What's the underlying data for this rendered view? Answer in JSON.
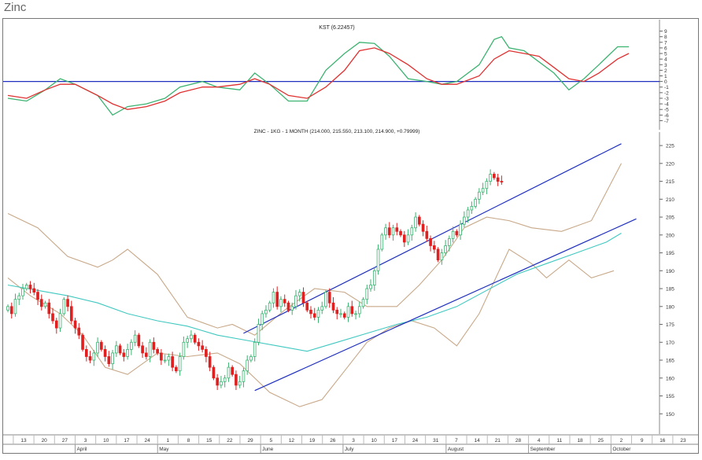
{
  "page": {
    "title": "Zinc"
  },
  "chart_data": [
    {
      "type": "line",
      "title": "KST (6.22457)",
      "ylim": [
        -7.5,
        9.5
      ],
      "y_ticks": [
        9,
        8,
        7,
        6,
        5,
        4,
        3,
        2,
        1,
        0,
        -1,
        -2,
        -3,
        -4,
        -5,
        -6,
        -7
      ],
      "zero_line": 0,
      "grid": false,
      "series": [
        {
          "color": "#3cb371",
          "points": [
            [
              0,
              -3.0
            ],
            [
              5,
              -3.5
            ],
            [
              10,
              -1.5
            ],
            [
              14,
              0.5
            ],
            [
              18,
              -0.5
            ],
            [
              24,
              -2.5
            ],
            [
              28,
              -6.0
            ],
            [
              32,
              -4.5
            ],
            [
              37,
              -4.0
            ],
            [
              42,
              -3.0
            ],
            [
              46,
              -1.0
            ],
            [
              52,
              0.0
            ],
            [
              56,
              -1.0
            ],
            [
              62,
              -1.5
            ],
            [
              66,
              1.5
            ],
            [
              70,
              -0.5
            ],
            [
              75,
              -3.5
            ],
            [
              80,
              -3.5
            ],
            [
              85,
              2.0
            ],
            [
              90,
              5.0
            ],
            [
              94,
              7.0
            ],
            [
              98,
              6.8
            ],
            [
              102,
              4.5
            ],
            [
              107,
              0.5
            ],
            [
              112,
              0.0
            ],
            [
              116,
              -0.5
            ],
            [
              120,
              0.0
            ],
            [
              126,
              3.0
            ],
            [
              130,
              7.5
            ],
            [
              132,
              8.0
            ],
            [
              134,
              6.0
            ],
            [
              138,
              5.5
            ],
            [
              142,
              3.5
            ],
            [
              146,
              1.5
            ],
            [
              150,
              -1.5
            ],
            [
              154,
              0.5
            ],
            [
              158,
              3.0
            ],
            [
              163,
              6.2
            ],
            [
              166,
              6.2
            ]
          ]
        },
        {
          "color": "#e03030",
          "points": [
            [
              0,
              -2.5
            ],
            [
              5,
              -3.0
            ],
            [
              10,
              -1.5
            ],
            [
              14,
              -0.5
            ],
            [
              18,
              -0.5
            ],
            [
              24,
              -2.5
            ],
            [
              28,
              -4.0
            ],
            [
              32,
              -5.0
            ],
            [
              37,
              -4.5
            ],
            [
              42,
              -3.5
            ],
            [
              46,
              -2.0
            ],
            [
              52,
              -1.0
            ],
            [
              56,
              -1.0
            ],
            [
              62,
              -0.5
            ],
            [
              66,
              0.5
            ],
            [
              70,
              -0.5
            ],
            [
              75,
              -2.5
            ],
            [
              80,
              -3.0
            ],
            [
              85,
              -1.0
            ],
            [
              90,
              2.0
            ],
            [
              94,
              5.5
            ],
            [
              98,
              6.0
            ],
            [
              102,
              5.0
            ],
            [
              107,
              3.0
            ],
            [
              112,
              0.5
            ],
            [
              116,
              -0.5
            ],
            [
              120,
              -0.5
            ],
            [
              126,
              1.0
            ],
            [
              130,
              4.0
            ],
            [
              134,
              5.5
            ],
            [
              138,
              5.0
            ],
            [
              142,
              4.5
            ],
            [
              146,
              2.5
            ],
            [
              150,
              0.5
            ],
            [
              154,
              0.0
            ],
            [
              158,
              1.5
            ],
            [
              163,
              4.0
            ],
            [
              166,
              5.0
            ]
          ]
        }
      ]
    },
    {
      "type": "candlestick",
      "title": "ZINC - 1KG - 1 MONTH (214.000, 215.550, 213.100, 214.900, +0.79999)",
      "ylim": [
        145,
        227
      ],
      "y_ticks": [
        225,
        220,
        215,
        210,
        205,
        200,
        195,
        190,
        185,
        180,
        175,
        170,
        165,
        160,
        155,
        150
      ],
      "grid": false,
      "x_tick_labels": [
        "13",
        "20",
        "27",
        "3",
        "10",
        "17",
        "24",
        "1",
        "8",
        "15",
        "22",
        "29",
        "5",
        "12",
        "19",
        "26",
        "3",
        "10",
        "17",
        "24",
        "31",
        "7",
        "14",
        "21",
        "28",
        "4",
        "11",
        "18",
        "25",
        "2",
        "9",
        "16",
        "23"
      ],
      "month_labels": [
        "April",
        "May",
        "June",
        "July",
        "August",
        "September",
        "October"
      ],
      "closes": [
        180,
        178,
        182,
        183,
        185,
        186,
        185,
        184,
        182,
        180,
        181,
        178,
        176,
        174,
        178,
        182,
        180,
        176,
        174,
        172,
        168,
        166,
        165,
        167,
        170,
        168,
        166,
        164,
        167,
        169,
        167,
        166,
        168,
        170,
        172,
        169,
        167,
        166,
        170,
        168,
        167,
        165,
        165,
        166,
        163,
        162,
        166,
        170,
        171,
        172,
        170,
        169,
        168,
        166,
        163,
        160,
        158,
        159,
        160,
        163,
        161,
        158,
        159,
        162,
        165,
        166,
        170,
        175,
        178,
        179,
        181,
        184,
        180,
        182,
        181,
        179,
        180,
        183,
        184,
        181,
        179,
        178,
        177,
        179,
        180,
        184,
        181,
        179,
        178,
        178,
        177,
        180,
        178,
        178,
        180,
        182,
        185,
        186,
        190,
        196,
        200,
        202,
        200,
        202,
        201,
        200,
        198,
        200,
        202,
        205,
        203,
        201,
        199,
        197,
        196,
        193,
        195,
        197,
        199,
        201,
        200,
        203,
        205,
        207,
        208,
        210,
        212,
        213,
        215,
        217,
        216,
        215,
        214.9
      ],
      "colors": {
        "up": "#3cb371",
        "down": "#e02020"
      },
      "channel": {
        "color": "#1f2fbf",
        "upper": [
          [
            63,
            172.5
          ],
          [
            164,
            225.5
          ]
        ],
        "lower": [
          [
            66,
            156.5
          ],
          [
            168,
            204.5
          ]
        ]
      },
      "moving_average": {
        "color": "#40c8c0",
        "points": [
          [
            0,
            186
          ],
          [
            8,
            184.5
          ],
          [
            16,
            183
          ],
          [
            24,
            181
          ],
          [
            32,
            178
          ],
          [
            40,
            176
          ],
          [
            48,
            174.5
          ],
          [
            56,
            172
          ],
          [
            64,
            170.5
          ],
          [
            72,
            169
          ],
          [
            80,
            167.5
          ],
          [
            88,
            170
          ],
          [
            96,
            172.5
          ],
          [
            104,
            175
          ],
          [
            112,
            177
          ],
          [
            120,
            180
          ],
          [
            128,
            184.5
          ],
          [
            136,
            189
          ],
          [
            144,
            192
          ],
          [
            152,
            195
          ],
          [
            160,
            198
          ],
          [
            164,
            200.5
          ]
        ]
      },
      "bollinger": {
        "color": "#c8a888",
        "upper": [
          [
            0,
            206
          ],
          [
            8,
            202
          ],
          [
            16,
            194
          ],
          [
            24,
            191
          ],
          [
            28,
            193
          ],
          [
            32,
            196
          ],
          [
            40,
            189
          ],
          [
            48,
            177
          ],
          [
            56,
            174
          ],
          [
            60,
            175
          ],
          [
            66,
            172
          ],
          [
            74,
            179
          ],
          [
            82,
            185
          ],
          [
            90,
            184
          ],
          [
            96,
            180
          ],
          [
            104,
            180
          ],
          [
            110,
            186
          ],
          [
            116,
            193
          ],
          [
            122,
            202
          ],
          [
            128,
            205
          ],
          [
            134,
            204
          ],
          [
            140,
            202
          ],
          [
            148,
            201
          ],
          [
            156,
            204
          ],
          [
            164,
            220
          ]
        ],
        "lower": [
          [
            0,
            188
          ],
          [
            6,
            183
          ],
          [
            14,
            178
          ],
          [
            20,
            172
          ],
          [
            26,
            163
          ],
          [
            32,
            161
          ],
          [
            40,
            167
          ],
          [
            48,
            166
          ],
          [
            56,
            167
          ],
          [
            62,
            164
          ],
          [
            70,
            156
          ],
          [
            78,
            152
          ],
          [
            84,
            154
          ],
          [
            90,
            162
          ],
          [
            96,
            170
          ],
          [
            102,
            174
          ],
          [
            108,
            176
          ],
          [
            114,
            174
          ],
          [
            120,
            169
          ],
          [
            126,
            178
          ],
          [
            134,
            196
          ],
          [
            140,
            192
          ],
          [
            144,
            188
          ],
          [
            150,
            193
          ],
          [
            156,
            188
          ],
          [
            162,
            190
          ]
        ]
      }
    }
  ]
}
